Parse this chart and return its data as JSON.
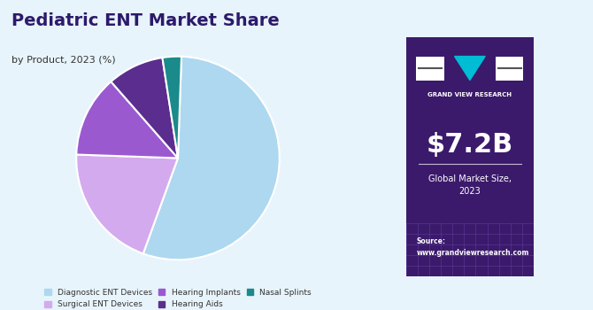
{
  "title": "Pediatric ENT Market Share",
  "subtitle": "by Product, 2023 (%)",
  "labels": [
    "Diagnostic ENT Devices",
    "Surgical ENT Devices",
    "Hearing Implants",
    "Hearing Aids",
    "Nasal Splints"
  ],
  "values": [
    55.0,
    20.0,
    13.0,
    9.0,
    3.0
  ],
  "colors": [
    "#add8f0",
    "#d4aaee",
    "#9b59d0",
    "#5b2d8e",
    "#1a8a8a"
  ],
  "background_color": "#e8f4fb",
  "right_panel_color": "#3b1a6b",
  "market_size": "$7.2B",
  "market_label": "Global Market Size,\n2023",
  "source_text": "Source:\nwww.grandviewresearch.com",
  "logo_text": "GRAND VIEW RESEARCH",
  "title_color": "#2c1a6b",
  "subtitle_color": "#333333",
  "legend_label_color": "#333333",
  "startangle": 88
}
